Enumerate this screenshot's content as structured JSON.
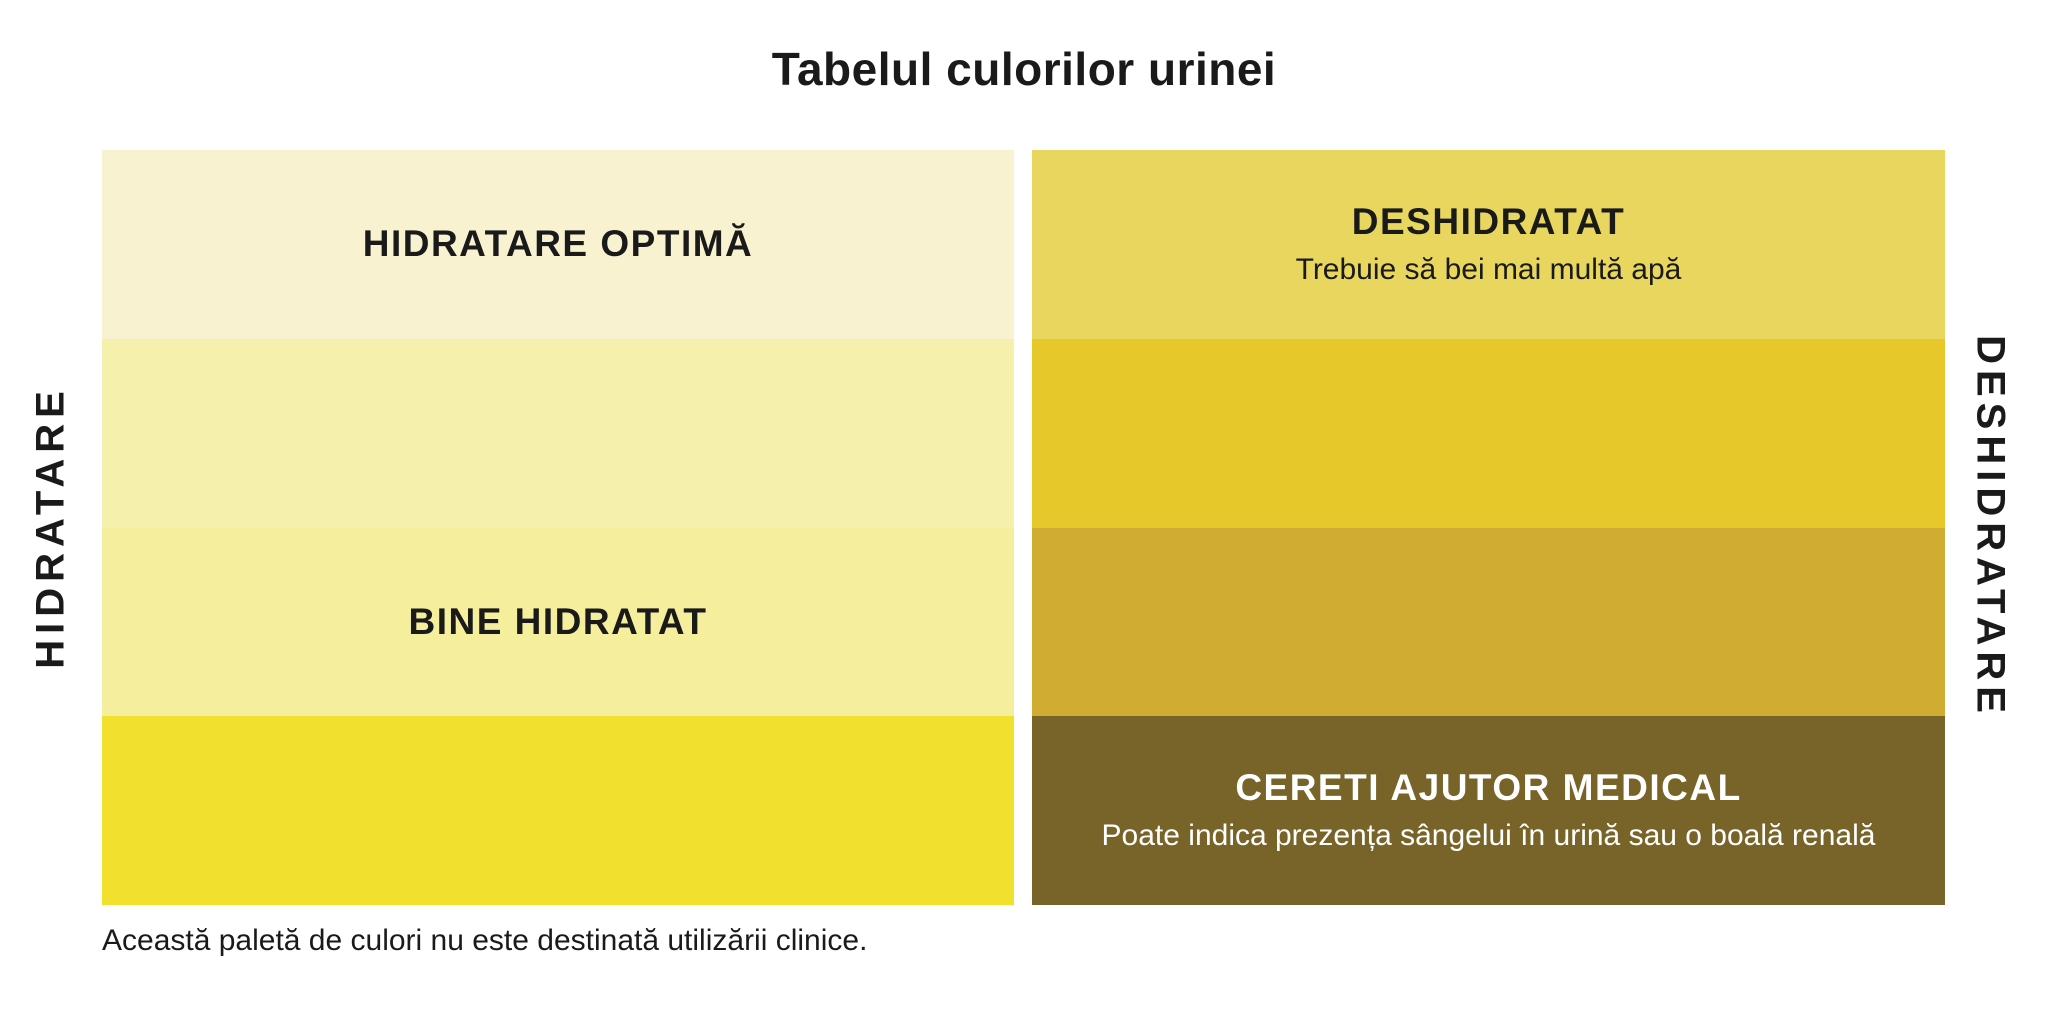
{
  "title": "Tabelul culorilor urinei",
  "axis_labels": {
    "left": "HIDRATARE",
    "right": "DESHIDRATARE"
  },
  "columns": [
    {
      "side": "hidratare",
      "bands": [
        {
          "color": "#F8F2D0",
          "heading": "HIDRATARE OPTIMĂ",
          "subheading": "",
          "text_color": "#1a1a1a"
        },
        {
          "color": "#F5F0AC",
          "heading": "",
          "subheading": ""
        },
        {
          "color": "#F4EE9D",
          "heading": "BINE HIDRATAT",
          "subheading": "",
          "text_color": "#1a1a1a"
        },
        {
          "color": "#F2E02E",
          "heading": "",
          "subheading": ""
        }
      ]
    },
    {
      "side": "deshidratare",
      "bands": [
        {
          "color": "#E9D65E",
          "heading": "DESHIDRATAT",
          "subheading": "Trebuie să bei mai multă apă",
          "text_color": "#1a1a1a"
        },
        {
          "color": "#E7C82B",
          "heading": "",
          "subheading": ""
        },
        {
          "color": "#D1AC33",
          "heading": "",
          "subheading": ""
        },
        {
          "color": "#786428",
          "heading": "CERETI AJUTOR MEDICAL",
          "subheading": "Poate indica prezența sângelui în urină sau o boală renală",
          "text_color": "#ffffff"
        }
      ]
    }
  ],
  "footer_note": "Această paletă de culori nu este destinată utilizării clinice.",
  "chart_data": {
    "type": "table",
    "title": "Tabelul culorilor urinei",
    "columns": [
      "HIDRATARE",
      "DESHIDRATARE"
    ],
    "series": [
      {
        "name": "HIDRATARE",
        "colors": [
          "#F8F2D0",
          "#F5F0AC",
          "#F4EE9D",
          "#F2E02E"
        ],
        "annotations": [
          "HIDRATARE OPTIMĂ",
          "",
          "BINE HIDRATAT",
          ""
        ]
      },
      {
        "name": "DESHIDRATARE",
        "colors": [
          "#E9D65E",
          "#E7C82B",
          "#D1AC33",
          "#786428"
        ],
        "annotations": [
          "DESHIDRATAT — Trebuie să bei mai multă apă",
          "",
          "",
          "CERETI AJUTOR MEDICAL — Poate indica prezența sângelui în urină sau o boală renală"
        ]
      }
    ],
    "note": "Această paletă de culori nu este destinată utilizării clinice.",
    "legend_position": "none",
    "grid": false
  }
}
